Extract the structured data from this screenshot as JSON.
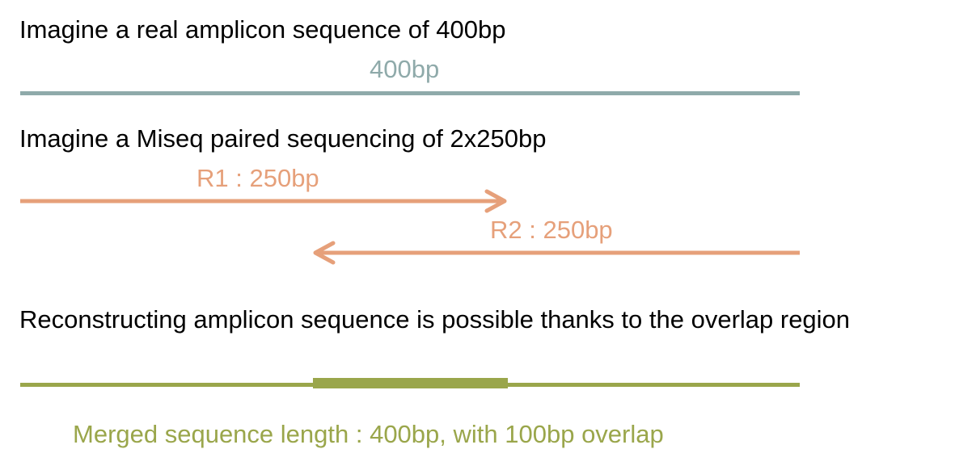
{
  "captions": {
    "amplicon": "Imagine a real amplicon sequence of 400bp",
    "miseq": "Imagine a Miseq paired sequencing of 2x250bp",
    "reconstruct": "Reconstructing amplicon sequence is possible thanks to the overlap region"
  },
  "amplicon": {
    "label": "400bp",
    "color": "#8faaaa"
  },
  "reads": {
    "r1": {
      "label": "R1 : 250bp",
      "length_bp": 250,
      "direction": "forward"
    },
    "r2": {
      "label": "R2 : 250bp",
      "length_bp": 250,
      "direction": "reverse"
    },
    "color": "#e6a07a"
  },
  "merged": {
    "label": "Merged sequence length : 400bp, with 100bp overlap",
    "length_bp": 400,
    "overlap_bp": 100,
    "color": "#9aa64b"
  }
}
